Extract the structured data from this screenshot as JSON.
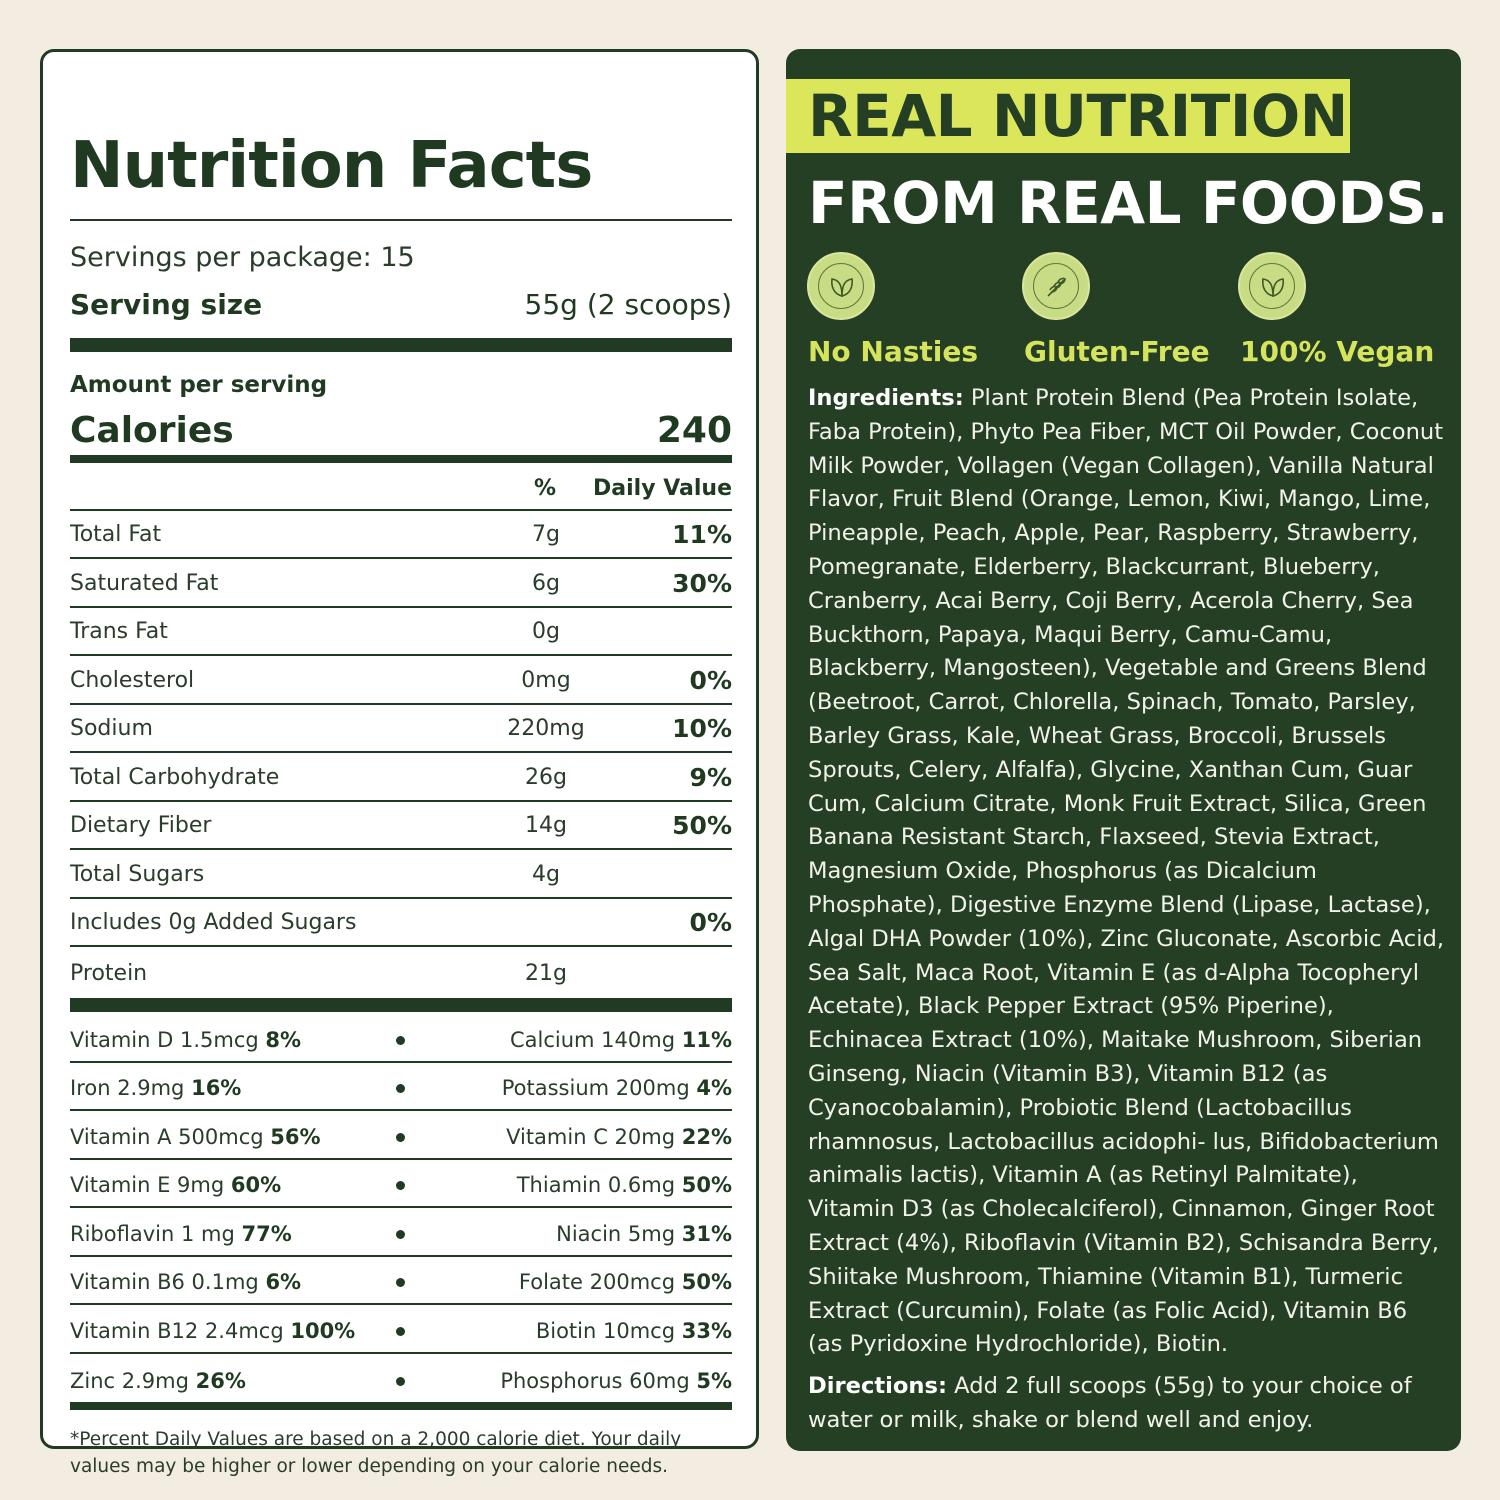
{
  "facts": {
    "title": "Nutrition Facts",
    "servings": "Servings per package: 15",
    "serving_size_label": "Serving size",
    "serving_size_value": "55g (2 scoops)",
    "amount_label": "Amount per serving",
    "calories_label": "Calories",
    "calories_value": "240",
    "pct_head": "%",
    "dv_head": "Daily Value",
    "rows": [
      {
        "name": "Total Fat",
        "amount": "7g",
        "pct": "11%"
      },
      {
        "name": "Saturated Fat",
        "amount": "6g",
        "pct": "30%"
      },
      {
        "name": "Trans Fat",
        "amount": "0g",
        "pct": ""
      },
      {
        "name": "Cholesterol",
        "amount": "0mg",
        "pct": "0%"
      },
      {
        "name": "Sodium",
        "amount": "220mg",
        "pct": "10%"
      },
      {
        "name": "Total Carbohydrate",
        "amount": "26g",
        "pct": "9%"
      },
      {
        "name": "Dietary Fiber",
        "amount": "14g",
        "pct": "50%"
      },
      {
        "name": "Total Sugars",
        "amount": "4g",
        "pct": ""
      },
      {
        "name": "Includes 0g Added Sugars",
        "amount": "",
        "pct": "0%"
      },
      {
        "name": "Protein",
        "amount": "21g",
        "pct": ""
      }
    ],
    "vitamins": [
      {
        "l_name": "Vitamin D 1.5mcg",
        "l_pct": "8%",
        "r_name": "Calcium 140mg",
        "r_pct": "11%"
      },
      {
        "l_name": "Iron 2.9mg",
        "l_pct": "16%",
        "r_name": "Potassium 200mg",
        "r_pct": "4%"
      },
      {
        "l_name": "Vitamin A 500mcg",
        "l_pct": "56%",
        "r_name": "Vitamin C 20mg",
        "r_pct": "22%"
      },
      {
        "l_name": "Vitamin E 9mg",
        "l_pct": "60%",
        "r_name": "Thiamin 0.6mg",
        "r_pct": "50%"
      },
      {
        "l_name": "Riboflavin 1 mg",
        "l_pct": "77%",
        "r_name": "Niacin 5mg",
        "r_pct": "31%"
      },
      {
        "l_name": "Vitamin B6 0.1mg",
        "l_pct": "6%",
        "r_name": "Folate 200mcg",
        "r_pct": "50%"
      },
      {
        "l_name": "Vitamin B12 2.4mcg",
        "l_pct": "100%",
        "r_name": "Biotin 10mcg",
        "r_pct": "33%"
      },
      {
        "l_name": "Zinc 2.9mg",
        "l_pct": "26%",
        "r_name": "Phosphorus 60mg",
        "r_pct": "5%"
      }
    ],
    "footnote": "*Percent Daily Values are based on a 2,000 calorie diet. Your daily values may be higher or lower depending on your calorie needs."
  },
  "promo": {
    "headline_1": "REAL NUTRITION",
    "headline_2": "FROM REAL FOODS.",
    "accent_color": "#dbe65a",
    "panel_color": "#253f25",
    "badges": [
      {
        "icon": "leaf-badge-icon",
        "label": "No Nasties"
      },
      {
        "icon": "gluten-free-badge-icon",
        "label": "Gluten-Free"
      },
      {
        "icon": "leaf-badge-icon",
        "label": "100% Vegan"
      }
    ],
    "ingredients_label": "Ingredients:",
    "ingredients_text": " Plant Protein Blend (Pea Protein Isolate, Faba Protein), Phyto Pea Fiber, MCT Oil Powder, Coconut Milk Powder, Vollagen (Vegan Collagen), Vanilla Natural Flavor, Fruit Blend (Orange, Lemon, Kiwi, Mango, Lime, Pineapple, Peach, Apple, Pear, Raspberry, Strawberry, Pomegranate, Elderberry, Blackcurrant, Blueberry, Cranberry, Acai Berry, Coji Berry, Acerola Cherry, Sea Buckthorn, Papaya, Maqui Berry, Camu-Camu, Blackberry, Mangosteen), Vegetable and Greens Blend (Beetroot, Carrot, Chlorella, Spinach, Tomato, Parsley, Barley Grass, Kale, Wheat Grass, Broccoli, Brussels Sprouts, Celery, Alfalfa), Glycine, Xanthan Cum, Guar Cum, Calcium Citrate, Monk Fruit Extract, Silica, Green Banana Resistant Starch, Flaxseed, Stevia Extract, Magnesium Oxide, Phosphorus (as Dicalcium Phosphate), Digestive Enzyme Blend (Lipase, Lactase), Algal DHA Powder (10%), Zinc Gluconate, Ascorbic Acid, Sea Salt, Maca Root, Vitamin E (as d-Alpha Tocopheryl Acetate), Black Pepper Extract (95% Piperine), Echinacea Extract (10%), Maitake Mushroom, Siberian Ginseng, Niacin (Vitamin B3), Vitamin B12 (as Cyanocobalamin), Probiotic Blend (Lactobacillus rhamnosus, Lactobacillus acidophi- lus, Bifidobacterium animalis lactis), Vitamin A (as Retinyl Palmitate), Vitamin D3 (as Cholecalciferol), Cinnamon, Ginger Root Extract (4%), Riboflavin (Vitamin B2), Schisandra Berry, Shiitake Mushroom, Thiamine (Vitamin B1), Turmeric Extract (Curcumin), Folate (as Folic Acid), Vitamin B6 (as Pyridoxine Hydrochloride), Biotin.",
    "directions_label": "Directions:",
    "directions_text": " Add 2 full scoops (55g) to your choice of water or milk, shake or blend well and enjoy."
  }
}
